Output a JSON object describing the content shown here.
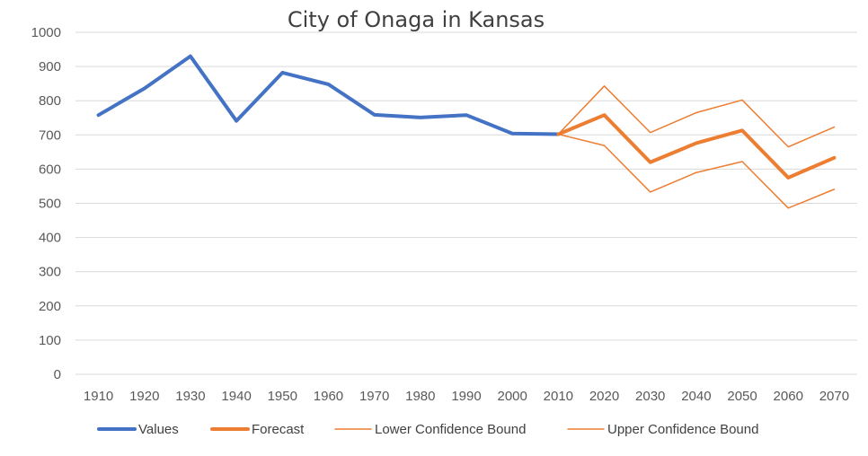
{
  "chart_data": {
    "type": "line",
    "title": "City of Onaga in Kansas",
    "xlabel": "",
    "ylabel": "",
    "x": [
      "1910",
      "1920",
      "1930",
      "1940",
      "1950",
      "1960",
      "1970",
      "1980",
      "1990",
      "2000",
      "2010",
      "2020",
      "2030",
      "2040",
      "2050",
      "2060",
      "2070"
    ],
    "ylim": [
      0,
      1000
    ],
    "yticks": [
      0,
      100,
      200,
      300,
      400,
      500,
      600,
      700,
      800,
      900,
      1000
    ],
    "grid": true,
    "legend_position": "bottom",
    "series": [
      {
        "name": "Values",
        "color": "#4472C4",
        "width": 4,
        "values": [
          758,
          836,
          930,
          741,
          882,
          848,
          759,
          751,
          758,
          704,
          702,
          null,
          null,
          null,
          null,
          null,
          null
        ]
      },
      {
        "name": "Forecast",
        "color": "#ED7D31",
        "width": 4,
        "values": [
          null,
          null,
          null,
          null,
          null,
          null,
          null,
          null,
          null,
          null,
          702,
          758,
          620,
          676,
          713,
          575,
          633
        ]
      },
      {
        "name": "Lower Confidence Bound",
        "color": "#ED7D31",
        "width": 1.5,
        "values": [
          null,
          null,
          null,
          null,
          null,
          null,
          null,
          null,
          null,
          null,
          702,
          669,
          533,
          590,
          622,
          486,
          541
        ]
      },
      {
        "name": "Upper Confidence Bound",
        "color": "#ED7D31",
        "width": 1.5,
        "values": [
          null,
          null,
          null,
          null,
          null,
          null,
          null,
          null,
          null,
          null,
          702,
          843,
          707,
          765,
          802,
          665,
          723
        ]
      }
    ]
  }
}
